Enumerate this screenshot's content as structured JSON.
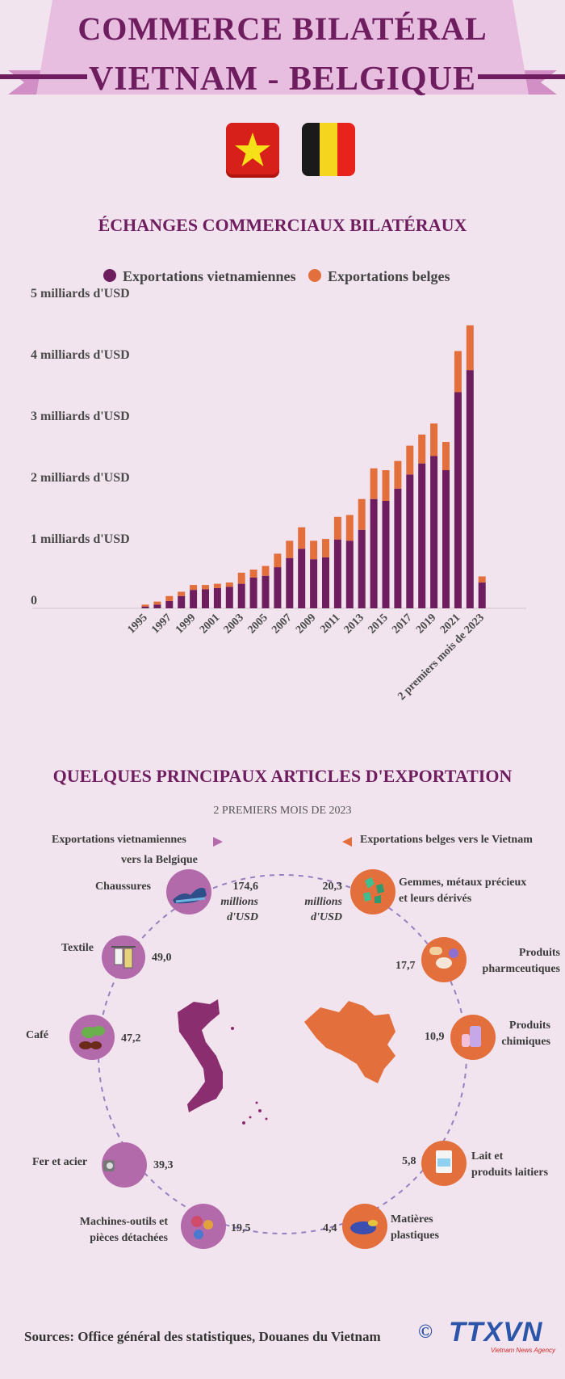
{
  "header": {
    "title_line1": "COMMERCE BILATÉRAL",
    "title_line2": "VIETNAM - BELGIQUE"
  },
  "flags": {
    "vietnam": {
      "icon": "vietnam-flag-icon",
      "red": "#d8201b",
      "star": "#f7e017"
    },
    "belgium": {
      "icon": "belgium-flag-icon",
      "black": "#1a1a1a",
      "yellow": "#f6d51f",
      "red": "#e8231c"
    }
  },
  "colors": {
    "vn": "#6e1d5e",
    "be": "#e36f3c",
    "accent": "#6e1d5e",
    "background": "#f2e4ee"
  },
  "chart": {
    "section_title": "ÉCHANGES COMMERCIAUX BILATÉRAUX",
    "legend": {
      "vn": "Exportations vietnamiennes",
      "be": "Exportations belges"
    }
  },
  "chart_data": {
    "type": "bar",
    "stacked": true,
    "title": "ÉCHANGES COMMERCIAUX BILATÉRAUX",
    "legend_position": "top",
    "grid": false,
    "categories": [
      "1995",
      "1996",
      "1997",
      "1998",
      "1999",
      "2000",
      "2001",
      "2002",
      "2003",
      "2004",
      "2005",
      "2006",
      "2007",
      "2008",
      "2009",
      "2010",
      "2011",
      "2012",
      "2013",
      "2014",
      "2015",
      "2016",
      "2017",
      "2018",
      "2019",
      "2020",
      "2021",
      "2022",
      "2 premiers mois de 2023"
    ],
    "x_tick_labels": [
      "1995",
      "1997",
      "1999",
      "2001",
      "2003",
      "2005",
      "2007",
      "2009",
      "2011",
      "2013",
      "2015",
      "2017",
      "2019",
      "2021",
      "2 premiers mois de 2023"
    ],
    "y_tick_labels": [
      "0",
      "1 milliards d'USD",
      "2 milliards d'USD",
      "3 milliards d'USD",
      "4 milliards d'USD",
      "5 milliards d'USD"
    ],
    "ylim": [
      0,
      5
    ],
    "y_unit": "milliards d'USD",
    "series": [
      {
        "name": "Exportations vietnamiennes",
        "color": "#6e1d5e",
        "values": [
          0.03,
          0.06,
          0.12,
          0.2,
          0.3,
          0.31,
          0.33,
          0.35,
          0.4,
          0.5,
          0.53,
          0.67,
          0.82,
          0.97,
          0.8,
          0.83,
          1.12,
          1.1,
          1.28,
          1.78,
          1.75,
          1.95,
          2.18,
          2.36,
          2.48,
          2.25,
          3.52,
          3.88,
          0.42
        ]
      },
      {
        "name": "Exportations belges",
        "color": "#e36f3c",
        "values": [
          0.03,
          0.05,
          0.08,
          0.07,
          0.08,
          0.07,
          0.07,
          0.07,
          0.18,
          0.13,
          0.16,
          0.22,
          0.28,
          0.35,
          0.3,
          0.3,
          0.37,
          0.42,
          0.5,
          0.5,
          0.5,
          0.45,
          0.47,
          0.47,
          0.53,
          0.46,
          0.67,
          0.73,
          0.1
        ]
      }
    ]
  },
  "items": {
    "section_title": "QUELQUES PRINCIPAUX ARTICLES D'EXPORTATION",
    "subtitle": "2 PREMIERS MOIS DE 2023",
    "vn_header_1": "Exportations vietnamiennes",
    "vn_header_2": "vers la Belgique",
    "be_header": "Exportations belges vers le Vietnam",
    "unit_1": "millions",
    "unit_2": "d'USD",
    "vn": [
      {
        "label": "Chaussures",
        "value": "174,6",
        "icon": "shoe-icon"
      },
      {
        "label": "Textile",
        "value": "49,0",
        "icon": "textile-icon"
      },
      {
        "label": "Café",
        "value": "47,2",
        "icon": "coffee-icon"
      },
      {
        "label": "Fer et acier",
        "value": "39,3",
        "icon": "steel-icon"
      },
      {
        "label_1": "Machines-outils et",
        "label_2": "pièces détachées",
        "value": "19,5",
        "icon": "machine-gear-icon"
      }
    ],
    "be": [
      {
        "label_1": "Gemmes, métaux précieux",
        "label_2": "et leurs dérivés",
        "value": "20,3",
        "icon": "gem-icon"
      },
      {
        "label_1": "Produits",
        "label_2": "pharmceutiques",
        "value": "17,7",
        "icon": "pill-icon"
      },
      {
        "label_1": "Produits",
        "label_2": "chimiques",
        "value": "10,9",
        "icon": "chemical-bottle-icon"
      },
      {
        "label_1": "Lait et",
        "label_2": "produits laitiers",
        "value": "5,8",
        "icon": "milk-icon"
      },
      {
        "label_1": "Matières",
        "label_2": "plastiques",
        "value": "4,4",
        "icon": "plastic-pellet-icon"
      }
    ]
  },
  "footer": {
    "sources": "Sources: Office général des statistiques, Douanes du Vietnam",
    "copyright": "©",
    "logo_text": "TTXVN",
    "logo_sub": "Vietnam News Agency"
  }
}
